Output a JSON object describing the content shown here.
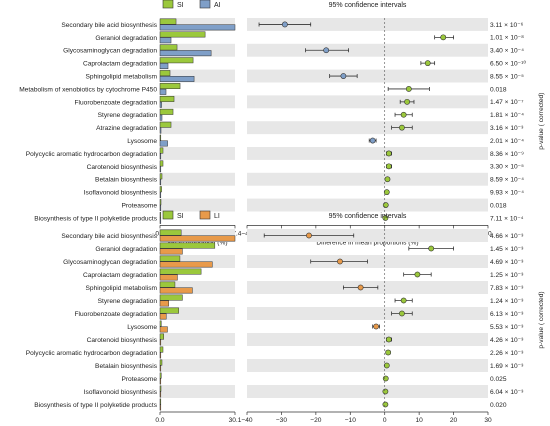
{
  "chart_data": [
    {
      "type": "bar",
      "legend": [
        {
          "name": "SI",
          "color": "#9bc83c"
        },
        {
          "name": "AI",
          "color": "#7f9fc8"
        }
      ],
      "title_ci": "95% confidence intervals",
      "xlabel_bar": "Mean proportion (%)",
      "bar_ticks": [
        "0.0",
        "37.4"
      ],
      "bar_max": 37.4,
      "xlabel_ci": "Difference in mean proportions (%)",
      "ci_ticks": [
        -40,
        -30,
        -20,
        -10,
        0,
        10,
        20,
        30
      ],
      "ci_range": [
        -40,
        30
      ],
      "pvalue_axis_label": "p-value ( corrected)",
      "dot_color_pos": "#9bc83c",
      "dot_color_neg": "#7f9fc8",
      "categories": [
        "Secondary bile acid biosynthesis",
        "Geraniol degradation",
        "Glycosaminoglycan degradation",
        "Caprolactam degradation",
        "Sphingolipid metabolism",
        "Metabolism of xenobiotics by cytochrome P450",
        "Fluorobenzoate degradation",
        "Styrene degradation",
        "Atrazine degradation",
        "Lysosome",
        "Polycyclic aromatic hydrocarbon degradation",
        "Carotenoid biosynthesis",
        "Betalain biosynthesis",
        "Isoflavonoid biosynthesis",
        "Proteasome",
        "Biosynthesis of type II polyketide products"
      ],
      "series": [
        {
          "name": "SI",
          "values": [
            8.0,
            22.5,
            8.5,
            16.5,
            5.0,
            10.0,
            7.0,
            6.5,
            5.5,
            0.3,
            1.5,
            1.5,
            1.0,
            0.8,
            0.5,
            0.4
          ]
        },
        {
          "name": "AI",
          "values": [
            37.4,
            5.5,
            25.5,
            4.0,
            17.0,
            3.0,
            0.8,
            1.0,
            0.5,
            3.8,
            0.4,
            0.3,
            0.2,
            0.2,
            0.2,
            0.2
          ]
        }
      ],
      "ci": [
        {
          "diff": -29,
          "low": -36.5,
          "high": -21.5
        },
        {
          "diff": 17,
          "low": 14.5,
          "high": 20
        },
        {
          "diff": -17,
          "low": -23,
          "high": -10.5
        },
        {
          "diff": 12.5,
          "low": 10.5,
          "high": 14.5
        },
        {
          "diff": -12,
          "low": -16,
          "high": -8
        },
        {
          "diff": 7,
          "low": 1,
          "high": 13
        },
        {
          "diff": 6.5,
          "low": 4.5,
          "high": 8.5
        },
        {
          "diff": 5.5,
          "low": 3,
          "high": 8
        },
        {
          "diff": 5,
          "low": 2,
          "high": 8
        },
        {
          "diff": -3.5,
          "low": -4.5,
          "high": -2.5
        },
        {
          "diff": 1.2,
          "low": 0.5,
          "high": 2
        },
        {
          "diff": 1.2,
          "low": 0.5,
          "high": 2
        },
        {
          "diff": 0.8,
          "low": 0.3,
          "high": 1.3
        },
        {
          "diff": 0.6,
          "low": 0.2,
          "high": 1
        },
        {
          "diff": 0.3,
          "low": 0,
          "high": 0.6
        },
        {
          "diff": 0.2,
          "low": 0,
          "high": 0.4
        }
      ],
      "pvalues": [
        "3.11 × 10⁻⁶",
        "1.01 × 10⁻⁸",
        "3.40 × 10⁻⁴",
        "6.50 × 10⁻¹⁰",
        "8.55 × 10⁻⁵",
        "0.018",
        "1.47 × 10⁻⁷",
        "1.81 × 10⁻⁴",
        "3.16 × 10⁻³",
        "2.01 × 10⁻⁴",
        "8.36 × 10⁻⁹",
        "3.30 × 10⁻⁵",
        "8.59 × 10⁻⁴",
        "9.93 × 10⁻⁴",
        "0.018",
        "7.11 × 10⁻⁴"
      ]
    },
    {
      "type": "bar",
      "legend": [
        {
          "name": "SI",
          "color": "#9bc83c"
        },
        {
          "name": "LI",
          "color": "#e89a4a"
        }
      ],
      "title_ci": "95% confidence intervals",
      "xlabel_bar": "Mean proportion (%)",
      "bar_ticks": [
        "0.0",
        "30.1"
      ],
      "bar_max": 30.1,
      "xlabel_ci": "Difference in mean proportions (%)",
      "ci_ticks": [
        -40,
        -30,
        -20,
        -10,
        0,
        10,
        20,
        30
      ],
      "ci_range": [
        -40,
        30
      ],
      "pvalue_axis_label": "p-value ( corrected)",
      "dot_color_pos": "#9bc83c",
      "dot_color_neg": "#e89a4a",
      "categories": [
        "Secondary bile acid biosynthesis",
        "Geraniol degradation",
        "Glycosaminoglycan degradation",
        "Caprolactam degradation",
        "Sphingolipid metabolism",
        "Styrene degradation",
        "Fluorobenzoate degradation",
        "Lysosome",
        "Carotenoid biosynthesis",
        "Polycyclic aromatic hydrocarbon degradation",
        "Betalain biosynthesis",
        "Proteasome",
        "Isoflavonoid biosynthesis",
        "Biosynthesis of type II polyketide products"
      ],
      "series": [
        {
          "name": "SI",
          "values": [
            8.5,
            22.0,
            8.0,
            16.5,
            6.0,
            9.0,
            7.5,
            0.5,
            1.5,
            1.2,
            0.8,
            0.5,
            0.4,
            0.3
          ]
        },
        {
          "name": "LI",
          "values": [
            30.1,
            9.0,
            21.0,
            7.0,
            13.0,
            3.5,
            2.5,
            3.0,
            0.3,
            0.2,
            0.2,
            0.2,
            0.2,
            0.2
          ]
        }
      ],
      "ci": [
        {
          "diff": -22,
          "low": -35,
          "high": -9
        },
        {
          "diff": 13.5,
          "low": 7,
          "high": 20
        },
        {
          "diff": -13,
          "low": -21.5,
          "high": -5
        },
        {
          "diff": 9.5,
          "low": 5.5,
          "high": 13.5
        },
        {
          "diff": -7,
          "low": -12,
          "high": -2
        },
        {
          "diff": 5.5,
          "low": 3,
          "high": 8
        },
        {
          "diff": 5,
          "low": 2,
          "high": 8
        },
        {
          "diff": -2.5,
          "low": -3.5,
          "high": -1.5
        },
        {
          "diff": 1.2,
          "low": 0.5,
          "high": 2
        },
        {
          "diff": 1.0,
          "low": 0.4,
          "high": 1.6
        },
        {
          "diff": 0.6,
          "low": 0.2,
          "high": 1
        },
        {
          "diff": 0.3,
          "low": 0,
          "high": 0.6
        },
        {
          "diff": 0.2,
          "low": 0,
          "high": 0.4
        },
        {
          "diff": 0.2,
          "low": 0,
          "high": 0.4
        }
      ],
      "pvalues": [
        "4.66 × 10⁻³",
        "1.45 × 10⁻³",
        "4.69 × 10⁻³",
        "1.25 × 10⁻³",
        "7.83 × 10⁻³",
        "1.24 × 10⁻³",
        "6.13 × 10⁻³",
        "5.53 × 10⁻³",
        "4.26 × 10⁻³",
        "2.26 × 10⁻³",
        "1.69 × 10⁻³",
        "0.025",
        "6.04 × 10⁻³",
        "0.020"
      ]
    }
  ]
}
